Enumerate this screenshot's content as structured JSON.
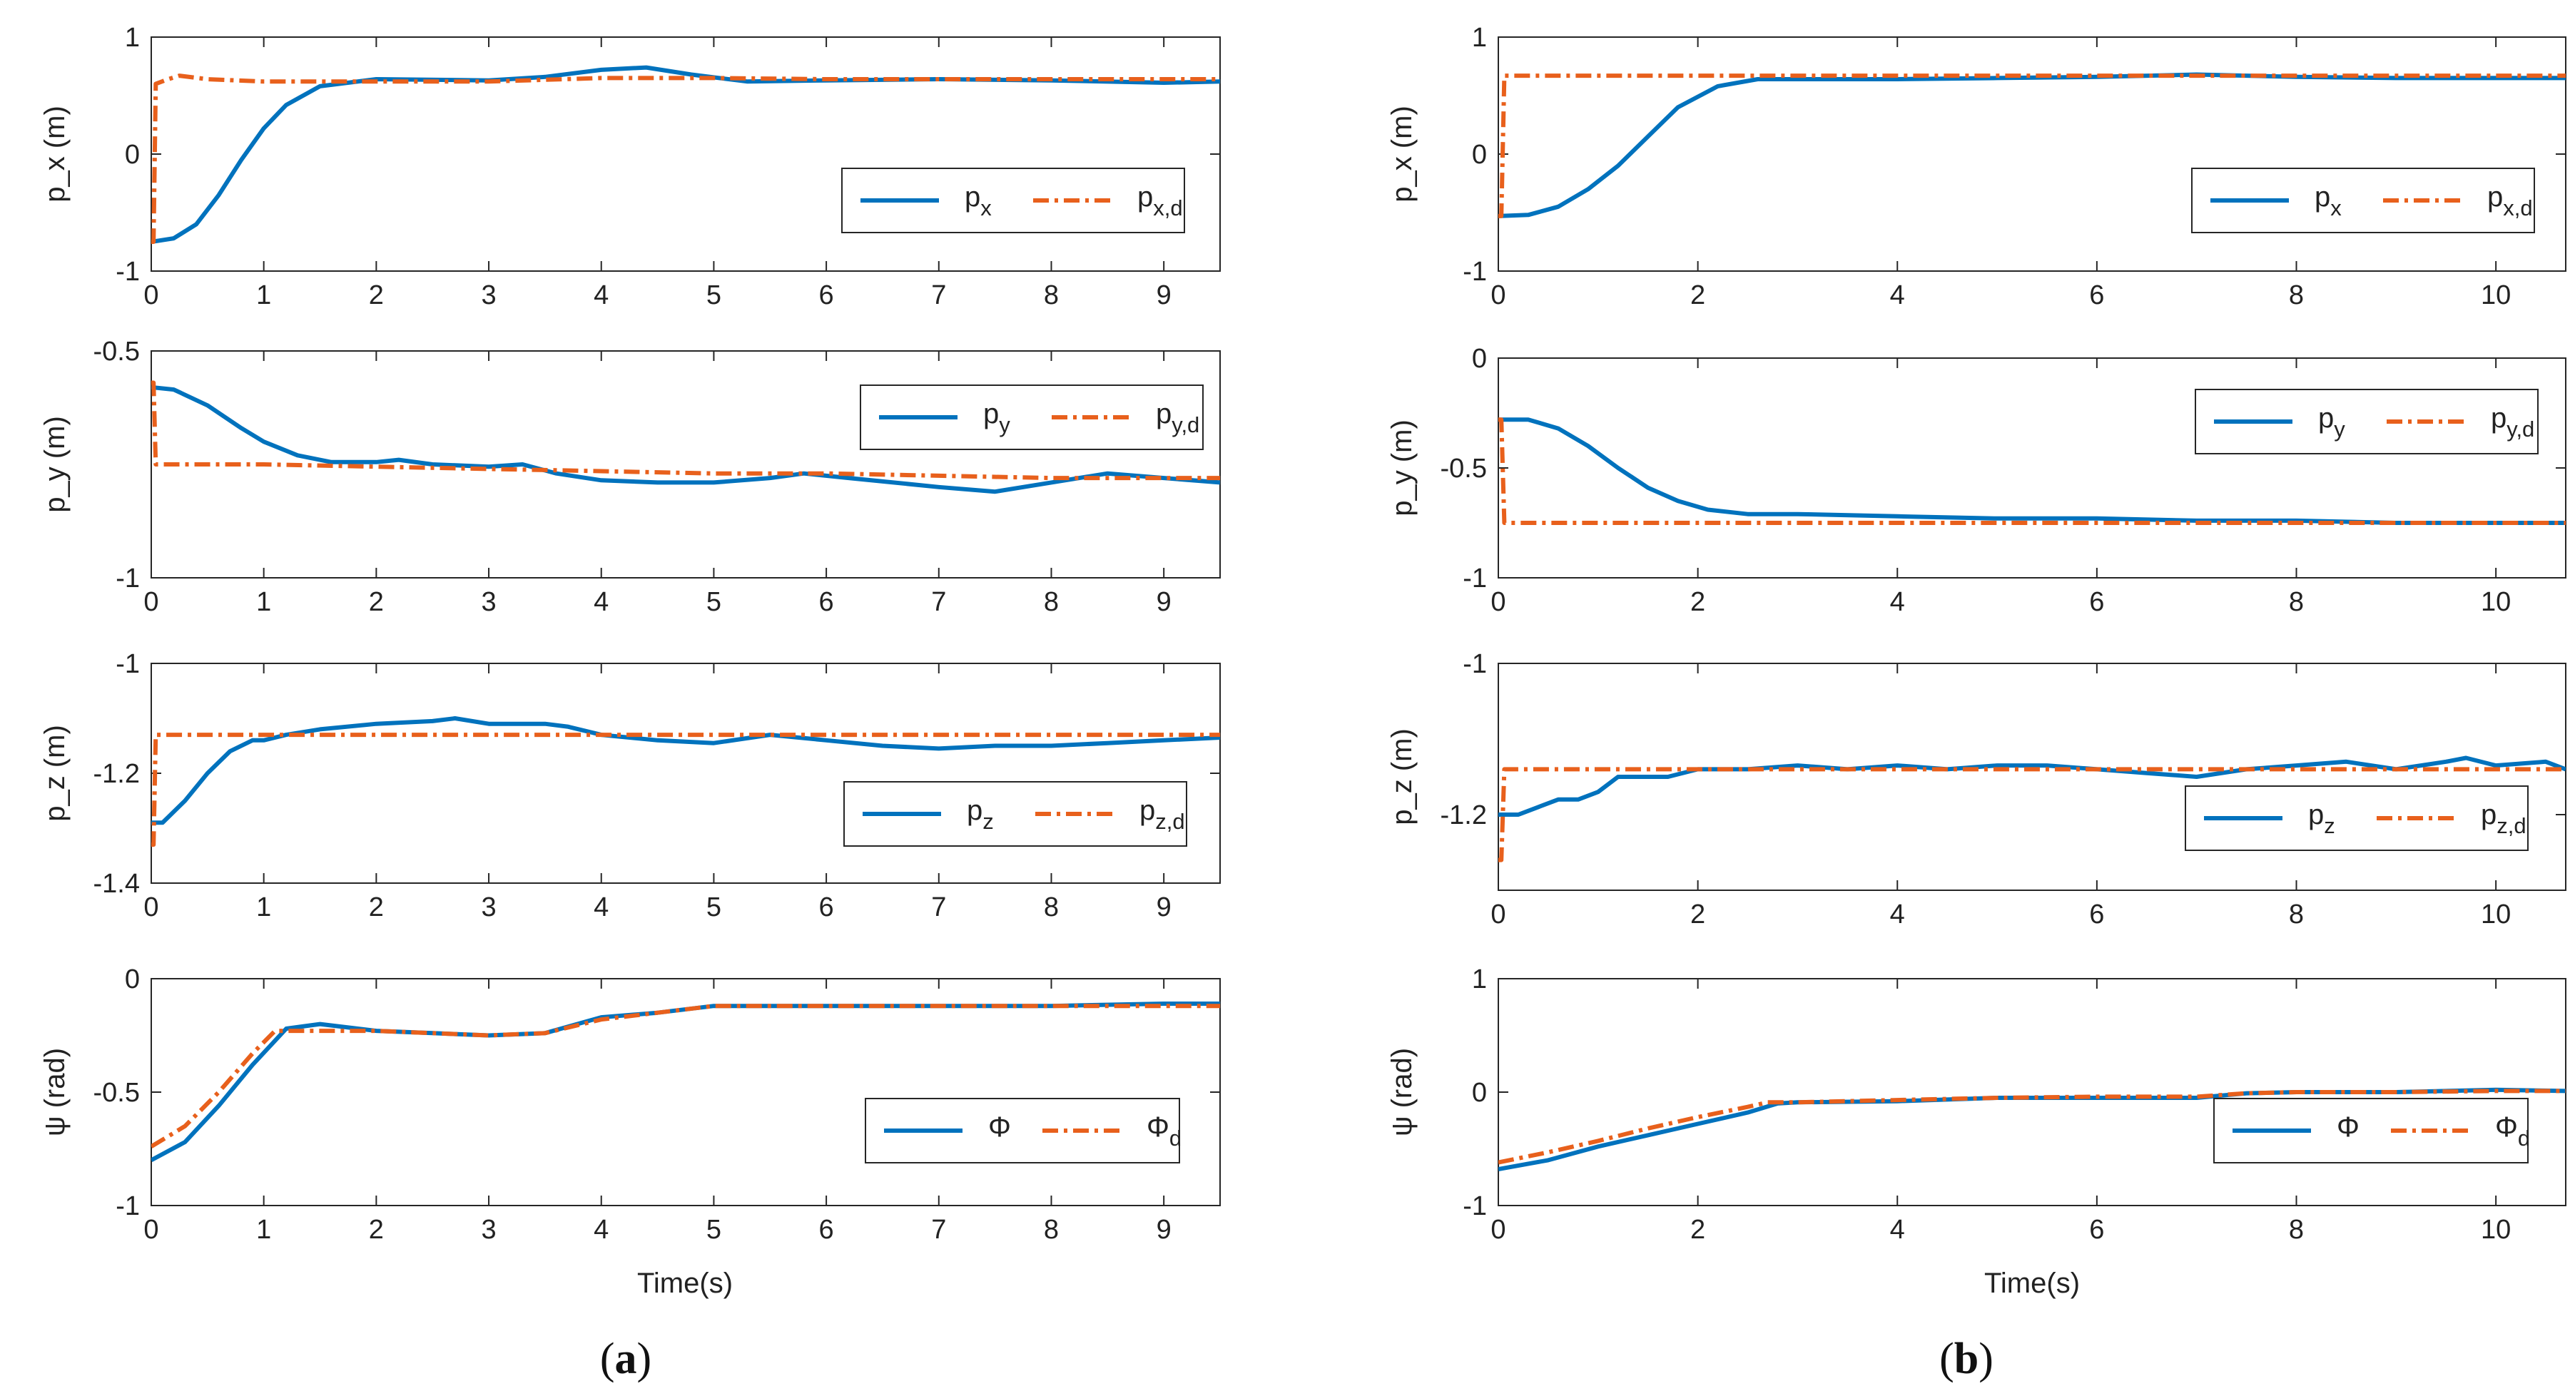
{
  "colors": {
    "actual": "#0072BD",
    "desired": "#E8601C",
    "axis": "#262626",
    "text": "#222222"
  },
  "captions": {
    "a": {
      "open": "(",
      "letter": "a",
      "close": ")"
    },
    "b": {
      "open": "(",
      "letter": "b",
      "close": ")"
    }
  },
  "xlabel": "Time(s)",
  "chart_data": [
    {
      "id": "a1",
      "type": "line",
      "ylabel": "p_x (m)",
      "xlim": [
        0,
        9.5
      ],
      "ylim": [
        -1,
        1
      ],
      "xticks": [
        0,
        1,
        2,
        3,
        4,
        5,
        6,
        7,
        8,
        9
      ],
      "yticks": [
        -1,
        0,
        1
      ],
      "xtick_labels": [
        "0",
        "1",
        "2",
        "3",
        "4",
        "5",
        "6",
        "7",
        "8",
        "9"
      ],
      "ytick_labels": [
        "-1",
        "0",
        "1"
      ],
      "legend": [
        {
          "base": "p",
          "sub": "x"
        },
        {
          "base": "p",
          "sub": "x,d"
        }
      ],
      "series": [
        {
          "name": "p_x",
          "style": "solid",
          "x": [
            0,
            0.2,
            0.4,
            0.6,
            0.8,
            1.0,
            1.2,
            1.5,
            2.0,
            3.0,
            3.5,
            4.0,
            4.4,
            4.8,
            5.3,
            6.0,
            7.0,
            8.0,
            9.0,
            9.5
          ],
          "y": [
            -0.75,
            -0.72,
            -0.6,
            -0.35,
            -0.05,
            0.22,
            0.42,
            0.58,
            0.64,
            0.63,
            0.66,
            0.72,
            0.74,
            0.68,
            0.62,
            0.63,
            0.64,
            0.63,
            0.61,
            0.62
          ]
        },
        {
          "name": "p_x,d",
          "style": "dashdot",
          "x": [
            0,
            0.02,
            0.04,
            0.15,
            0.25,
            0.5,
            1.0,
            2.0,
            3.0,
            4.0,
            5.0,
            6.0,
            7.0,
            8.0,
            9.0,
            9.5
          ],
          "y": [
            -0.75,
            -0.75,
            0.6,
            0.64,
            0.67,
            0.64,
            0.62,
            0.62,
            0.62,
            0.65,
            0.65,
            0.64,
            0.64,
            0.64,
            0.64,
            0.64
          ]
        }
      ]
    },
    {
      "id": "a2",
      "type": "line",
      "ylabel": "p_y (m)",
      "xlim": [
        0,
        9.5
      ],
      "ylim": [
        -1,
        -0.5
      ],
      "xticks": [
        0,
        1,
        2,
        3,
        4,
        5,
        6,
        7,
        8,
        9
      ],
      "yticks": [
        -1,
        -0.5
      ],
      "xtick_labels": [
        "0",
        "1",
        "2",
        "3",
        "4",
        "5",
        "6",
        "7",
        "8",
        "9"
      ],
      "ytick_labels": [
        "-1",
        "-0.5"
      ],
      "legend": [
        {
          "base": "p",
          "sub": "y"
        },
        {
          "base": "p",
          "sub": "y,d"
        }
      ],
      "series": [
        {
          "name": "p_y",
          "style": "solid",
          "x": [
            0,
            0.2,
            0.5,
            0.8,
            1.0,
            1.3,
            1.6,
            2.0,
            2.2,
            2.5,
            3.0,
            3.3,
            3.6,
            4.0,
            4.5,
            5.0,
            5.5,
            5.8,
            6.2,
            7.0,
            7.5,
            8.0,
            8.5,
            9.0,
            9.5
          ],
          "y": [
            -0.58,
            -0.585,
            -0.62,
            -0.67,
            -0.7,
            -0.73,
            -0.745,
            -0.745,
            -0.74,
            -0.75,
            -0.755,
            -0.75,
            -0.77,
            -0.785,
            -0.79,
            -0.79,
            -0.78,
            -0.77,
            -0.78,
            -0.8,
            -0.81,
            -0.79,
            -0.77,
            -0.78,
            -0.79
          ]
        },
        {
          "name": "p_y,d",
          "style": "dashdot",
          "x": [
            0,
            0.02,
            0.04,
            1.0,
            2.0,
            3.0,
            4.0,
            5.0,
            6.0,
            7.0,
            8.0,
            9.0,
            9.5
          ],
          "y": [
            -0.57,
            -0.57,
            -0.75,
            -0.75,
            -0.755,
            -0.76,
            -0.765,
            -0.77,
            -0.77,
            -0.775,
            -0.78,
            -0.78,
            -0.78
          ]
        }
      ]
    },
    {
      "id": "a3",
      "type": "line",
      "ylabel": "p_z (m)",
      "xlim": [
        0,
        9.5
      ],
      "ylim": [
        -1.4,
        -1
      ],
      "xticks": [
        0,
        1,
        2,
        3,
        4,
        5,
        6,
        7,
        8,
        9
      ],
      "yticks": [
        -1.4,
        -1.2,
        -1
      ],
      "xtick_labels": [
        "0",
        "1",
        "2",
        "3",
        "4",
        "5",
        "6",
        "7",
        "8",
        "9"
      ],
      "ytick_labels": [
        "-1.4",
        "-1.2",
        "-1"
      ],
      "legend": [
        {
          "base": "p",
          "sub": "z"
        },
        {
          "base": "p",
          "sub": "z,d"
        }
      ],
      "series": [
        {
          "name": "p_z",
          "style": "solid",
          "x": [
            0,
            0.1,
            0.3,
            0.5,
            0.7,
            0.9,
            1.0,
            1.2,
            1.5,
            2.0,
            2.5,
            2.7,
            3.0,
            3.5,
            3.7,
            4.0,
            4.5,
            5.0,
            5.5,
            6.0,
            6.5,
            7.0,
            7.5,
            8.0,
            8.5,
            9.0,
            9.5
          ],
          "y": [
            -1.29,
            -1.29,
            -1.25,
            -1.2,
            -1.16,
            -1.14,
            -1.14,
            -1.13,
            -1.12,
            -1.11,
            -1.105,
            -1.1,
            -1.11,
            -1.11,
            -1.115,
            -1.13,
            -1.14,
            -1.145,
            -1.13,
            -1.14,
            -1.15,
            -1.155,
            -1.15,
            -1.15,
            -1.145,
            -1.14,
            -1.135
          ]
        },
        {
          "name": "p_z,d",
          "style": "dashdot",
          "x": [
            0,
            0.02,
            0.04,
            1.0,
            2.0,
            3.0,
            4.0,
            5.0,
            6.0,
            7.0,
            8.0,
            9.0,
            9.5
          ],
          "y": [
            -1.33,
            -1.33,
            -1.13,
            -1.13,
            -1.13,
            -1.13,
            -1.13,
            -1.13,
            -1.13,
            -1.13,
            -1.13,
            -1.13,
            -1.13
          ]
        }
      ]
    },
    {
      "id": "a4",
      "type": "line",
      "ylabel": "ψ (rad)",
      "xlim": [
        0,
        9.5
      ],
      "ylim": [
        -1,
        0
      ],
      "xticks": [
        0,
        1,
        2,
        3,
        4,
        5,
        6,
        7,
        8,
        9
      ],
      "yticks": [
        -1,
        -0.5,
        0
      ],
      "xtick_labels": [
        "0",
        "1",
        "2",
        "3",
        "4",
        "5",
        "6",
        "7",
        "8",
        "9"
      ],
      "ytick_labels": [
        "-1",
        "-0.5",
        "0"
      ],
      "legend": [
        {
          "base": "Φ",
          "sub": ""
        },
        {
          "base": "Φ",
          "sub": "d"
        }
      ],
      "series": [
        {
          "name": "Φ",
          "style": "solid",
          "x": [
            0,
            0.3,
            0.6,
            0.9,
            1.2,
            1.5,
            2.0,
            2.5,
            3.0,
            3.5,
            4.0,
            4.5,
            5.0,
            5.5,
            6.0,
            7.0,
            8.0,
            9.0,
            9.5
          ],
          "y": [
            -0.8,
            -0.72,
            -0.56,
            -0.38,
            -0.22,
            -0.2,
            -0.23,
            -0.24,
            -0.25,
            -0.24,
            -0.17,
            -0.15,
            -0.12,
            -0.12,
            -0.12,
            -0.12,
            -0.12,
            -0.11,
            -0.11
          ]
        },
        {
          "name": "Φ_d",
          "style": "dashdot",
          "x": [
            0,
            0.3,
            0.6,
            0.9,
            1.1,
            1.2,
            2.0,
            2.5,
            3.0,
            3.5,
            4.0,
            4.5,
            5.0,
            6.0,
            7.0,
            8.0,
            9.0,
            9.5
          ],
          "y": [
            -0.74,
            -0.65,
            -0.5,
            -0.33,
            -0.23,
            -0.23,
            -0.23,
            -0.24,
            -0.25,
            -0.24,
            -0.18,
            -0.15,
            -0.12,
            -0.12,
            -0.12,
            -0.12,
            -0.12,
            -0.12
          ]
        }
      ]
    },
    {
      "id": "b1",
      "type": "line",
      "ylabel": "p_x (m)",
      "xlim": [
        0,
        10.7
      ],
      "ylim": [
        -1,
        1
      ],
      "xticks": [
        0,
        2,
        4,
        6,
        8,
        10
      ],
      "yticks": [
        -1,
        0,
        1
      ],
      "xtick_labels": [
        "0",
        "2",
        "4",
        "6",
        "8",
        "10"
      ],
      "ytick_labels": [
        "-1",
        "0",
        "1"
      ],
      "legend": [
        {
          "base": "p",
          "sub": "x"
        },
        {
          "base": "p",
          "sub": "x,d"
        }
      ],
      "series": [
        {
          "name": "p_x",
          "style": "solid",
          "x": [
            0,
            0.3,
            0.6,
            0.9,
            1.2,
            1.5,
            1.8,
            2.2,
            2.6,
            3.0,
            4.0,
            5.0,
            6.0,
            7.0,
            8.0,
            9.0,
            10.0,
            10.7
          ],
          "y": [
            -0.53,
            -0.52,
            -0.45,
            -0.3,
            -0.1,
            0.15,
            0.4,
            0.58,
            0.64,
            0.64,
            0.64,
            0.65,
            0.66,
            0.68,
            0.66,
            0.65,
            0.65,
            0.65
          ]
        },
        {
          "name": "p_x,d",
          "style": "dashdot",
          "x": [
            0,
            0.03,
            0.06,
            1.0,
            2.0,
            4.0,
            6.0,
            8.0,
            10.0,
            10.7
          ],
          "y": [
            -0.53,
            -0.53,
            0.67,
            0.67,
            0.67,
            0.67,
            0.67,
            0.67,
            0.67,
            0.67
          ]
        }
      ]
    },
    {
      "id": "b2",
      "type": "line",
      "ylabel": "p_y (m)",
      "xlim": [
        0,
        10.7
      ],
      "ylim": [
        -1,
        0
      ],
      "xticks": [
        0,
        2,
        4,
        6,
        8,
        10
      ],
      "yticks": [
        -1,
        -0.5,
        0
      ],
      "xtick_labels": [
        "0",
        "2",
        "4",
        "6",
        "8",
        "10"
      ],
      "ytick_labels": [
        "-1",
        "-0.5",
        "0"
      ],
      "legend": [
        {
          "base": "p",
          "sub": "y"
        },
        {
          "base": "p",
          "sub": "y,d"
        }
      ],
      "series": [
        {
          "name": "p_y",
          "style": "solid",
          "x": [
            0,
            0.3,
            0.6,
            0.9,
            1.2,
            1.5,
            1.8,
            2.1,
            2.5,
            3.0,
            4.0,
            5.0,
            6.0,
            7.0,
            8.0,
            9.0,
            10.0,
            10.7
          ],
          "y": [
            -0.28,
            -0.28,
            -0.32,
            -0.4,
            -0.5,
            -0.59,
            -0.65,
            -0.69,
            -0.71,
            -0.71,
            -0.72,
            -0.73,
            -0.73,
            -0.74,
            -0.74,
            -0.75,
            -0.75,
            -0.75
          ]
        },
        {
          "name": "p_y,d",
          "style": "dashdot",
          "x": [
            0,
            0.03,
            0.06,
            1.0,
            2.0,
            4.0,
            6.0,
            8.0,
            10.0,
            10.7
          ],
          "y": [
            -0.28,
            -0.28,
            -0.75,
            -0.75,
            -0.75,
            -0.75,
            -0.75,
            -0.75,
            -0.75,
            -0.75
          ]
        }
      ]
    },
    {
      "id": "b3",
      "type": "line",
      "ylabel": "p_z (m)",
      "xlim": [
        0,
        10.7
      ],
      "ylim": [
        -1.3,
        -1
      ],
      "xticks": [
        0,
        2,
        4,
        6,
        8,
        10
      ],
      "yticks": [
        -1.2,
        -1
      ],
      "xtick_labels": [
        "0",
        "2",
        "4",
        "6",
        "8",
        "10"
      ],
      "ytick_labels": [
        "-1.2",
        "-1"
      ],
      "legend": [
        {
          "base": "p",
          "sub": "z"
        },
        {
          "base": "p",
          "sub": "z,d"
        }
      ],
      "series": [
        {
          "name": "p_z",
          "style": "solid",
          "x": [
            0,
            0.2,
            0.4,
            0.6,
            0.8,
            1.0,
            1.2,
            1.4,
            1.7,
            2.0,
            2.5,
            3.0,
            3.5,
            4.0,
            4.5,
            5.0,
            5.5,
            6.0,
            6.5,
            7.0,
            7.5,
            8.0,
            8.5,
            9.0,
            9.5,
            9.7,
            10.0,
            10.5,
            10.7
          ],
          "y": [
            -1.2,
            -1.2,
            -1.19,
            -1.18,
            -1.18,
            -1.17,
            -1.15,
            -1.15,
            -1.15,
            -1.14,
            -1.14,
            -1.135,
            -1.14,
            -1.135,
            -1.14,
            -1.135,
            -1.135,
            -1.14,
            -1.145,
            -1.15,
            -1.14,
            -1.135,
            -1.13,
            -1.14,
            -1.13,
            -1.125,
            -1.135,
            -1.13,
            -1.14
          ]
        },
        {
          "name": "p_z,d",
          "style": "dashdot",
          "x": [
            0,
            0.03,
            0.06,
            1.0,
            2.0,
            4.0,
            6.0,
            8.0,
            10.0,
            10.7
          ],
          "y": [
            -1.26,
            -1.26,
            -1.14,
            -1.14,
            -1.14,
            -1.14,
            -1.14,
            -1.14,
            -1.14,
            -1.14
          ]
        }
      ]
    },
    {
      "id": "b4",
      "type": "line",
      "ylabel": "ψ (rad)",
      "xlim": [
        0,
        10.7
      ],
      "ylim": [
        -1,
        1
      ],
      "xticks": [
        0,
        2,
        4,
        6,
        8,
        10
      ],
      "yticks": [
        -1,
        0,
        1
      ],
      "xtick_labels": [
        "0",
        "2",
        "4",
        "6",
        "8",
        "10"
      ],
      "ytick_labels": [
        "-1",
        "0",
        "1"
      ],
      "legend": [
        {
          "base": "Φ",
          "sub": ""
        },
        {
          "base": "Φ",
          "sub": "d"
        }
      ],
      "series": [
        {
          "name": "Φ",
          "style": "solid",
          "x": [
            0,
            0.5,
            1.0,
            1.5,
            2.0,
            2.5,
            2.8,
            3.0,
            4.0,
            5.0,
            6.0,
            7.0,
            7.5,
            8.0,
            9.0,
            10.0,
            10.7
          ],
          "y": [
            -0.68,
            -0.6,
            -0.48,
            -0.38,
            -0.28,
            -0.18,
            -0.1,
            -0.09,
            -0.08,
            -0.05,
            -0.05,
            -0.05,
            -0.01,
            0.0,
            0.0,
            0.02,
            0.01
          ]
        },
        {
          "name": "Φ_d",
          "style": "dashdot",
          "x": [
            0,
            0.5,
            1.0,
            1.5,
            2.0,
            2.5,
            2.7,
            3.0,
            4.0,
            5.0,
            6.0,
            7.0,
            7.5,
            8.0,
            9.0,
            10.0,
            10.7
          ],
          "y": [
            -0.62,
            -0.53,
            -0.43,
            -0.32,
            -0.22,
            -0.13,
            -0.09,
            -0.09,
            -0.07,
            -0.05,
            -0.04,
            -0.04,
            -0.01,
            0.0,
            0.0,
            0.01,
            0.01
          ]
        }
      ]
    }
  ]
}
